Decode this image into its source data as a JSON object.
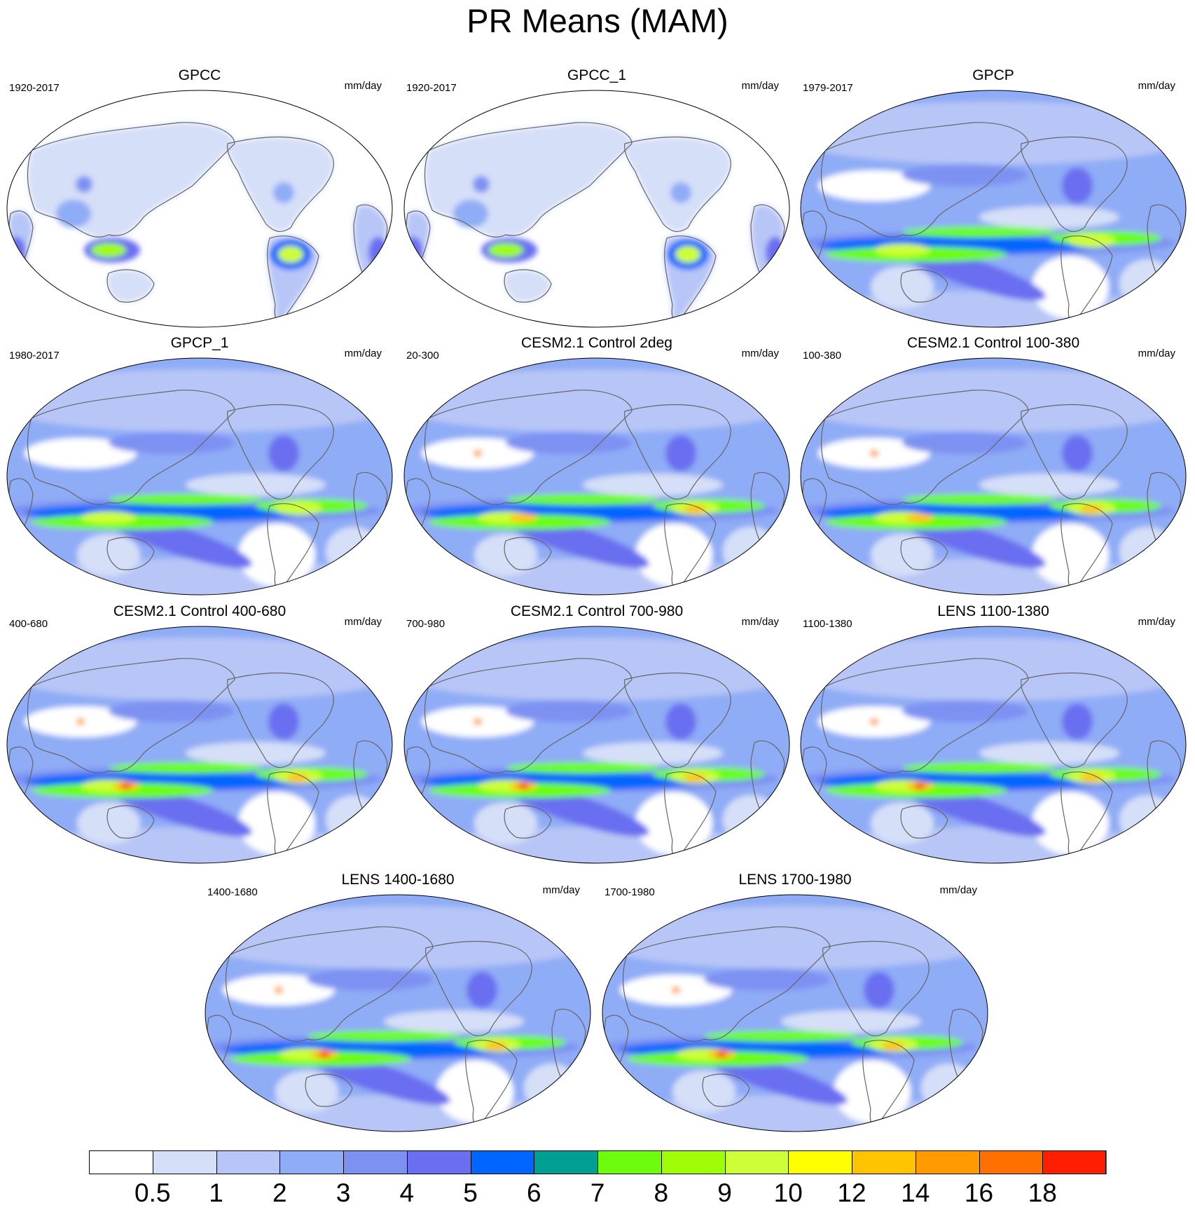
{
  "title": "PR Means (MAM)",
  "units": "mm/day",
  "panels": [
    {
      "title": "GPCC",
      "period": "1920-2017",
      "dataset_type": "land-only"
    },
    {
      "title": "GPCC_1",
      "period": "1920-2017",
      "dataset_type": "land-only"
    },
    {
      "title": "GPCP",
      "period": "1979-2017",
      "dataset_type": "global"
    },
    {
      "title": "GPCP_1",
      "period": "1980-2017",
      "dataset_type": "global"
    },
    {
      "title": "CESM2.1 Control 2deg",
      "period": "20-300",
      "dataset_type": "global"
    },
    {
      "title": "CESM2.1 Control 100-380",
      "period": "100-380",
      "dataset_type": "global"
    },
    {
      "title": "CESM2.1 Control 400-680",
      "period": "400-680",
      "dataset_type": "global"
    },
    {
      "title": "CESM2.1 Control 700-980",
      "period": "700-980",
      "dataset_type": "global"
    },
    {
      "title": "LENS 1100-1380",
      "period": "1100-1380",
      "dataset_type": "global"
    },
    {
      "title": "LENS 1400-1680",
      "period": "1400-1680",
      "dataset_type": "global"
    },
    {
      "title": "LENS 1700-1980",
      "period": "1700-1980",
      "dataset_type": "global"
    }
  ],
  "colorbar": {
    "levels": [
      "0.5",
      "1",
      "2",
      "3",
      "4",
      "5",
      "6",
      "7",
      "8",
      "9",
      "10",
      "12",
      "14",
      "16",
      "18"
    ],
    "colors": [
      "#ffffff",
      "#d6dff8",
      "#b7c6f7",
      "#8facf6",
      "#7d91f2",
      "#6a6ef0",
      "#0066ff",
      "#009f93",
      "#6dfd0c",
      "#9ffd06",
      "#ccff35",
      "#ffff00",
      "#ffc300",
      "#ff9a00",
      "#ff7000",
      "#ff1f00"
    ]
  },
  "colors": {
    "coastline": "#666666",
    "map_border": "#000000",
    "background": "#ffffff"
  }
}
